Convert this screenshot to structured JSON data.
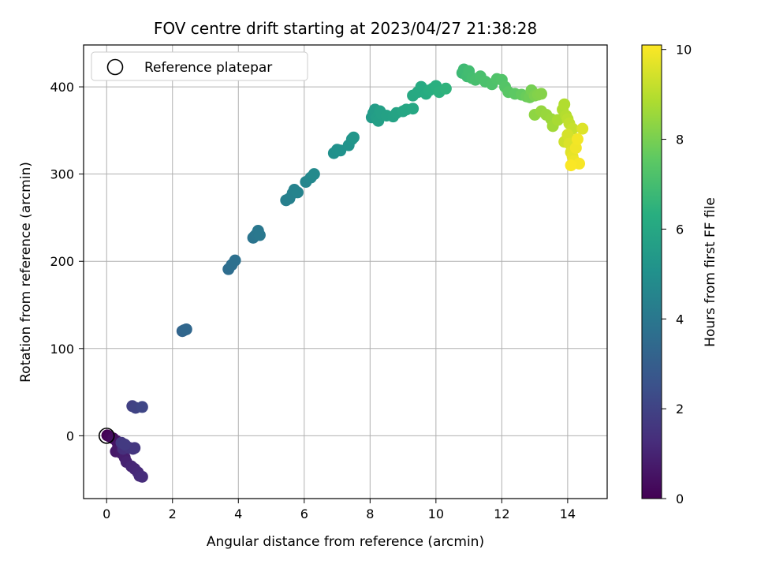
{
  "chart_data": {
    "type": "scatter",
    "title": "FOV centre drift starting at 2023/04/27 21:38:28",
    "xlabel": "Angular distance from reference (arcmin)",
    "ylabel": "Rotation from reference (arcmin)",
    "xlim": [
      -0.7,
      15.2
    ],
    "ylim": [
      -72,
      448
    ],
    "xticks": [
      0,
      2,
      4,
      6,
      8,
      10,
      12,
      14
    ],
    "yticks": [
      0,
      100,
      200,
      300,
      400
    ],
    "grid": true,
    "legend": {
      "location": "upper-left",
      "entries": [
        "Reference platepar"
      ]
    },
    "reference_point": {
      "x": 0,
      "y": 0
    },
    "colorbar": {
      "label": "Hours from first FF file",
      "range": [
        0,
        10.1
      ],
      "ticks": [
        0,
        2,
        4,
        6,
        8,
        10
      ],
      "colormap": "viridis"
    },
    "series": [
      {
        "points": [
          {
            "x": 0.02,
            "y": 0.5,
            "h": 0.0
          },
          {
            "x": 0.1,
            "y": -1,
            "h": 0.15
          },
          {
            "x": 0.2,
            "y": -3,
            "h": 0.3
          },
          {
            "x": 0.3,
            "y": -6,
            "h": 0.45
          },
          {
            "x": 0.35,
            "y": -12,
            "h": 0.55
          },
          {
            "x": 0.28,
            "y": -18,
            "h": 0.65
          },
          {
            "x": 0.45,
            "y": -20,
            "h": 0.75
          },
          {
            "x": 0.55,
            "y": -25,
            "h": 0.85
          },
          {
            "x": 0.6,
            "y": -30,
            "h": 0.95
          },
          {
            "x": 0.75,
            "y": -35,
            "h": 1.05
          },
          {
            "x": 0.85,
            "y": -38,
            "h": 1.1
          },
          {
            "x": 0.95,
            "y": -42,
            "h": 1.15
          },
          {
            "x": 1.0,
            "y": -46,
            "h": 1.2
          },
          {
            "x": 1.08,
            "y": -47,
            "h": 1.25
          },
          {
            "x": 0.5,
            "y": -15,
            "h": 1.35
          },
          {
            "x": 0.6,
            "y": -12,
            "h": 1.4
          },
          {
            "x": 0.7,
            "y": -14,
            "h": 1.5
          },
          {
            "x": 0.8,
            "y": -15,
            "h": 1.55
          },
          {
            "x": 0.85,
            "y": -14,
            "h": 1.6
          },
          {
            "x": 0.45,
            "y": -8,
            "h": 1.65
          },
          {
            "x": 0.55,
            "y": -10,
            "h": 1.7
          },
          {
            "x": 0.78,
            "y": 34,
            "h": 1.9
          },
          {
            "x": 0.88,
            "y": 32,
            "h": 2.0
          },
          {
            "x": 1.08,
            "y": 33,
            "h": 2.1
          },
          {
            "x": 2.3,
            "y": 120,
            "h": 3.25
          },
          {
            "x": 2.35,
            "y": 121,
            "h": 3.3
          },
          {
            "x": 2.42,
            "y": 122,
            "h": 3.35
          },
          {
            "x": 3.7,
            "y": 191,
            "h": 3.6
          },
          {
            "x": 3.8,
            "y": 196,
            "h": 3.65
          },
          {
            "x": 3.9,
            "y": 201,
            "h": 3.7
          },
          {
            "x": 4.45,
            "y": 227,
            "h": 3.85
          },
          {
            "x": 4.5,
            "y": 229,
            "h": 3.9
          },
          {
            "x": 4.55,
            "y": 231,
            "h": 3.95
          },
          {
            "x": 4.6,
            "y": 235,
            "h": 4.0
          },
          {
            "x": 4.65,
            "y": 230,
            "h": 4.05
          },
          {
            "x": 5.45,
            "y": 270,
            "h": 4.3
          },
          {
            "x": 5.55,
            "y": 272,
            "h": 4.35
          },
          {
            "x": 5.65,
            "y": 278,
            "h": 4.4
          },
          {
            "x": 5.7,
            "y": 282,
            "h": 4.45
          },
          {
            "x": 5.8,
            "y": 279,
            "h": 4.5
          },
          {
            "x": 6.05,
            "y": 291,
            "h": 4.6
          },
          {
            "x": 6.2,
            "y": 296,
            "h": 4.7
          },
          {
            "x": 6.3,
            "y": 300,
            "h": 4.75
          },
          {
            "x": 6.9,
            "y": 324,
            "h": 5.0
          },
          {
            "x": 7.0,
            "y": 328,
            "h": 5.05
          },
          {
            "x": 7.1,
            "y": 327,
            "h": 5.1
          },
          {
            "x": 7.35,
            "y": 333,
            "h": 5.15
          },
          {
            "x": 7.45,
            "y": 340,
            "h": 5.2
          },
          {
            "x": 7.5,
            "y": 342,
            "h": 5.25
          },
          {
            "x": 8.05,
            "y": 365,
            "h": 5.45
          },
          {
            "x": 8.1,
            "y": 370,
            "h": 5.5
          },
          {
            "x": 8.15,
            "y": 374,
            "h": 5.55
          },
          {
            "x": 8.2,
            "y": 365,
            "h": 5.6
          },
          {
            "x": 8.25,
            "y": 361,
            "h": 5.65
          },
          {
            "x": 8.3,
            "y": 372,
            "h": 5.7
          },
          {
            "x": 8.35,
            "y": 369,
            "h": 5.72
          },
          {
            "x": 8.5,
            "y": 367,
            "h": 5.75
          },
          {
            "x": 8.7,
            "y": 366,
            "h": 5.8
          },
          {
            "x": 8.8,
            "y": 370,
            "h": 5.85
          },
          {
            "x": 9.0,
            "y": 372,
            "h": 5.9
          },
          {
            "x": 9.1,
            "y": 374,
            "h": 5.95
          },
          {
            "x": 9.3,
            "y": 375,
            "h": 6.0
          },
          {
            "x": 9.3,
            "y": 390,
            "h": 6.05
          },
          {
            "x": 9.45,
            "y": 394,
            "h": 6.1
          },
          {
            "x": 9.55,
            "y": 400,
            "h": 6.15
          },
          {
            "x": 9.7,
            "y": 392,
            "h": 6.2
          },
          {
            "x": 9.8,
            "y": 396,
            "h": 6.25
          },
          {
            "x": 9.9,
            "y": 398,
            "h": 6.3
          },
          {
            "x": 10.0,
            "y": 401,
            "h": 6.35
          },
          {
            "x": 10.1,
            "y": 394,
            "h": 6.4
          },
          {
            "x": 10.3,
            "y": 398,
            "h": 6.5
          },
          {
            "x": 10.8,
            "y": 416,
            "h": 6.8
          },
          {
            "x": 10.85,
            "y": 420,
            "h": 6.85
          },
          {
            "x": 10.95,
            "y": 412,
            "h": 6.9
          },
          {
            "x": 11.0,
            "y": 418,
            "h": 6.95
          },
          {
            "x": 11.1,
            "y": 410,
            "h": 7.0
          },
          {
            "x": 11.2,
            "y": 408,
            "h": 7.05
          },
          {
            "x": 11.35,
            "y": 412,
            "h": 7.1
          },
          {
            "x": 11.5,
            "y": 406,
            "h": 7.15
          },
          {
            "x": 11.7,
            "y": 403,
            "h": 7.2
          },
          {
            "x": 11.85,
            "y": 409,
            "h": 7.25
          },
          {
            "x": 12.0,
            "y": 408,
            "h": 7.3
          },
          {
            "x": 12.1,
            "y": 400,
            "h": 7.35
          },
          {
            "x": 12.2,
            "y": 394,
            "h": 7.45
          },
          {
            "x": 12.4,
            "y": 392,
            "h": 7.55
          },
          {
            "x": 12.6,
            "y": 391,
            "h": 7.65
          },
          {
            "x": 12.75,
            "y": 389,
            "h": 7.75
          },
          {
            "x": 12.85,
            "y": 388,
            "h": 7.85
          },
          {
            "x": 12.9,
            "y": 396,
            "h": 7.95
          },
          {
            "x": 13.0,
            "y": 390,
            "h": 8.05
          },
          {
            "x": 13.1,
            "y": 391,
            "h": 8.15
          },
          {
            "x": 13.2,
            "y": 392,
            "h": 8.2
          },
          {
            "x": 13.0,
            "y": 368,
            "h": 8.35
          },
          {
            "x": 13.2,
            "y": 372,
            "h": 8.45
          },
          {
            "x": 13.35,
            "y": 368,
            "h": 8.5
          },
          {
            "x": 13.5,
            "y": 363,
            "h": 8.55
          },
          {
            "x": 13.55,
            "y": 355,
            "h": 8.65
          },
          {
            "x": 13.7,
            "y": 362,
            "h": 8.75
          },
          {
            "x": 13.85,
            "y": 374,
            "h": 8.85
          },
          {
            "x": 13.9,
            "y": 380,
            "h": 8.9
          },
          {
            "x": 13.95,
            "y": 367,
            "h": 8.95
          },
          {
            "x": 14.0,
            "y": 363,
            "h": 9.05
          },
          {
            "x": 14.05,
            "y": 358,
            "h": 9.15
          },
          {
            "x": 14.15,
            "y": 352,
            "h": 9.25
          },
          {
            "x": 13.9,
            "y": 337,
            "h": 9.35
          },
          {
            "x": 14.0,
            "y": 345,
            "h": 9.45
          },
          {
            "x": 14.05,
            "y": 335,
            "h": 9.55
          },
          {
            "x": 14.1,
            "y": 325,
            "h": 9.65
          },
          {
            "x": 14.15,
            "y": 320,
            "h": 9.75
          },
          {
            "x": 14.2,
            "y": 315,
            "h": 9.85
          },
          {
            "x": 14.25,
            "y": 330,
            "h": 9.9
          },
          {
            "x": 14.3,
            "y": 340,
            "h": 9.95
          },
          {
            "x": 14.35,
            "y": 312,
            "h": 10.0
          },
          {
            "x": 14.1,
            "y": 310,
            "h": 10.05
          },
          {
            "x": 14.45,
            "y": 352,
            "h": 9.6
          }
        ]
      }
    ]
  }
}
